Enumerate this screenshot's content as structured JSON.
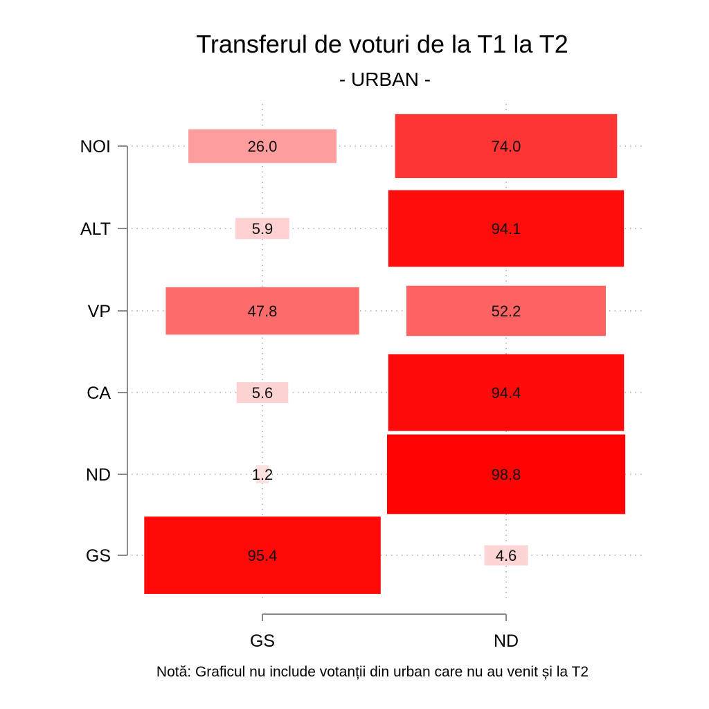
{
  "chart_data": {
    "type": "table",
    "title": "Transferul de voturi de la T1 la T2",
    "subtitle": "- URBAN -",
    "note": "Notă: Graficul nu include votanții din urban care nu au venit și la T2",
    "columns": [
      "GS",
      "ND"
    ],
    "rows": [
      "NOI",
      "ALT",
      "VP",
      "CA",
      "ND",
      "GS"
    ],
    "values": [
      [
        26.0,
        74.0
      ],
      [
        5.9,
        94.1
      ],
      [
        47.8,
        52.2
      ],
      [
        5.6,
        94.4
      ],
      [
        1.2,
        98.8
      ],
      [
        95.4,
        4.6
      ]
    ],
    "value_labels": [
      [
        "26.0",
        "74.0"
      ],
      [
        "5.9",
        "94.1"
      ],
      [
        "47.8",
        "52.2"
      ],
      [
        "5.6",
        "94.4"
      ],
      [
        "1.2",
        "98.8"
      ],
      [
        "95.4",
        "4.6"
      ]
    ],
    "xlabel": "",
    "ylabel": "",
    "grid": true,
    "colors": {
      "low": "#fde6e6",
      "high": "#ff0000",
      "grid": "#a9a9a9",
      "axis": "#8a8a8a"
    }
  }
}
